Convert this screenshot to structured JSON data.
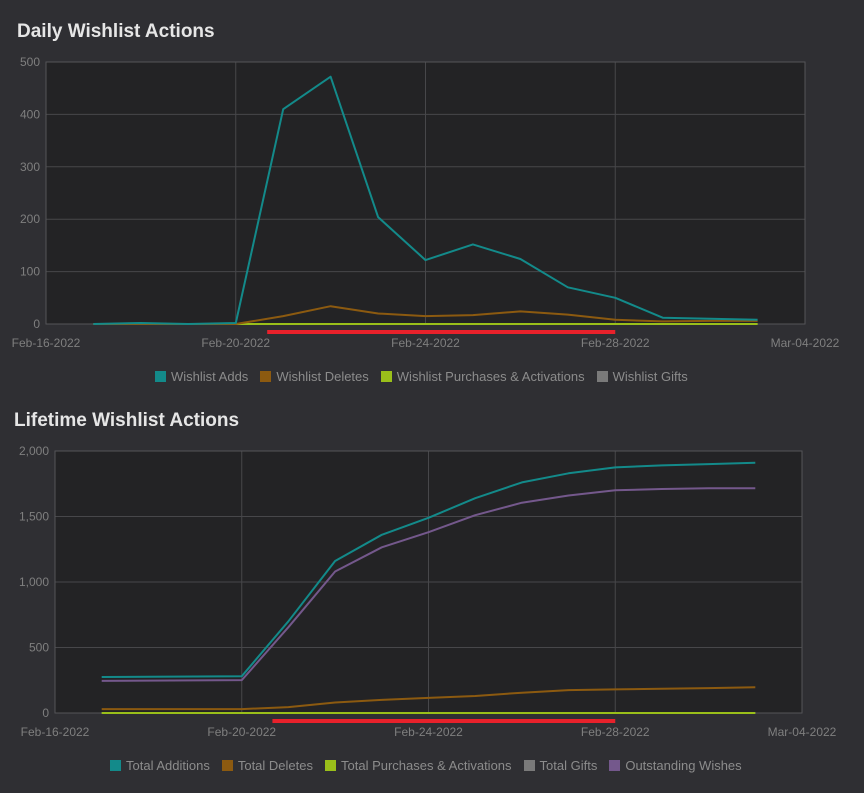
{
  "chart_data": [
    {
      "type": "line",
      "title": "Daily Wishlist Actions",
      "ylim": [
        0,
        500
      ],
      "yticks": [
        "0",
        "100",
        "200",
        "300",
        "400",
        "500"
      ],
      "ytick_values": [
        0,
        100,
        200,
        300,
        400,
        500
      ],
      "xlim": [
        "2022-02-16",
        "2022-03-04"
      ],
      "xticks": [
        {
          "date": "2022-02-16",
          "label": "Feb-16-2022"
        },
        {
          "date": "2022-02-20",
          "label": "Feb-20-2022"
        },
        {
          "date": "2022-02-24",
          "label": "Feb-24-2022"
        },
        {
          "date": "2022-02-28",
          "label": "Feb-28-2022"
        },
        {
          "date": "2022-03-04",
          "label": "Mar-04-2022"
        }
      ],
      "x": [
        "2022-02-17",
        "2022-02-18",
        "2022-02-19",
        "2022-02-20",
        "2022-02-21",
        "2022-02-22",
        "2022-02-23",
        "2022-02-24",
        "2022-02-25",
        "2022-02-26",
        "2022-02-27",
        "2022-02-28",
        "2022-03-01",
        "2022-03-02",
        "2022-03-03"
      ],
      "series": [
        {
          "name": "Wishlist Adds",
          "color": "#138a8a",
          "values": [
            0,
            2,
            0,
            2,
            410,
            472,
            204,
            122,
            152,
            124,
            70,
            50,
            12,
            10,
            8
          ]
        },
        {
          "name": "Wishlist Deletes",
          "color": "#8c5a10",
          "values": [
            0,
            0,
            0,
            0,
            15,
            34,
            20,
            15,
            17,
            24,
            18,
            8,
            5,
            6,
            6
          ]
        },
        {
          "name": "Wishlist Purchases & Activations",
          "color": "#9abf1a",
          "values": [
            0,
            0,
            0,
            0,
            0,
            0,
            0,
            0,
            0,
            0,
            0,
            0,
            0,
            0,
            0
          ]
        },
        {
          "name": "Wishlist Gifts",
          "color": "#7a7a7a",
          "values": [
            0,
            0,
            0,
            0,
            0,
            0,
            0,
            0,
            0,
            0,
            0,
            0,
            0,
            0,
            0
          ]
        }
      ],
      "highlight_range": [
        "2022-02-21",
        "2022-02-28"
      ],
      "highlight_color": "#e8212b",
      "grid": true,
      "legend": "bottom"
    },
    {
      "type": "line",
      "title": "Lifetime Wishlist Actions",
      "ylim": [
        0,
        2000
      ],
      "yticks": [
        "0",
        "500",
        "1,000",
        "1,500",
        "2,000"
      ],
      "ytick_values": [
        0,
        500,
        1000,
        1500,
        2000
      ],
      "xlim": [
        "2022-02-16",
        "2022-03-04"
      ],
      "xticks": [
        {
          "date": "2022-02-16",
          "label": "Feb-16-2022"
        },
        {
          "date": "2022-02-20",
          "label": "Feb-20-2022"
        },
        {
          "date": "2022-02-24",
          "label": "Feb-24-2022"
        },
        {
          "date": "2022-02-28",
          "label": "Feb-28-2022"
        },
        {
          "date": "2022-03-04",
          "label": "Mar-04-2022"
        }
      ],
      "x": [
        "2022-02-17",
        "2022-02-18",
        "2022-02-19",
        "2022-02-20",
        "2022-02-21",
        "2022-02-22",
        "2022-02-23",
        "2022-02-24",
        "2022-02-25",
        "2022-02-26",
        "2022-02-27",
        "2022-02-28",
        "2022-03-01",
        "2022-03-02",
        "2022-03-03"
      ],
      "series": [
        {
          "name": "Total Additions",
          "color": "#138a8a",
          "values": [
            275,
            277,
            279,
            281,
            700,
            1160,
            1360,
            1490,
            1640,
            1760,
            1830,
            1875,
            1890,
            1900,
            1910
          ]
        },
        {
          "name": "Total Deletes",
          "color": "#8c5a10",
          "values": [
            30,
            30,
            30,
            30,
            45,
            80,
            100,
            115,
            130,
            155,
            175,
            180,
            185,
            190,
            197
          ]
        },
        {
          "name": "Total Purchases & Activations",
          "color": "#9abf1a",
          "values": [
            0,
            0,
            0,
            0,
            0,
            0,
            0,
            0,
            0,
            0,
            0,
            0,
            0,
            0,
            0
          ]
        },
        {
          "name": "Total Gifts",
          "color": "#7a7a7a",
          "values": [
            0,
            0,
            0,
            0,
            0,
            0,
            0,
            0,
            0,
            0,
            0,
            0,
            0,
            0,
            0
          ]
        },
        {
          "name": "Outstanding Wishes",
          "color": "#74588c",
          "values": [
            245,
            247,
            249,
            251,
            655,
            1080,
            1265,
            1380,
            1510,
            1605,
            1660,
            1700,
            1710,
            1715,
            1715
          ]
        }
      ],
      "highlight_range": [
        "2022-02-21",
        "2022-02-28"
      ],
      "highlight_color": "#e8212b",
      "grid": true,
      "legend": "bottom"
    }
  ]
}
